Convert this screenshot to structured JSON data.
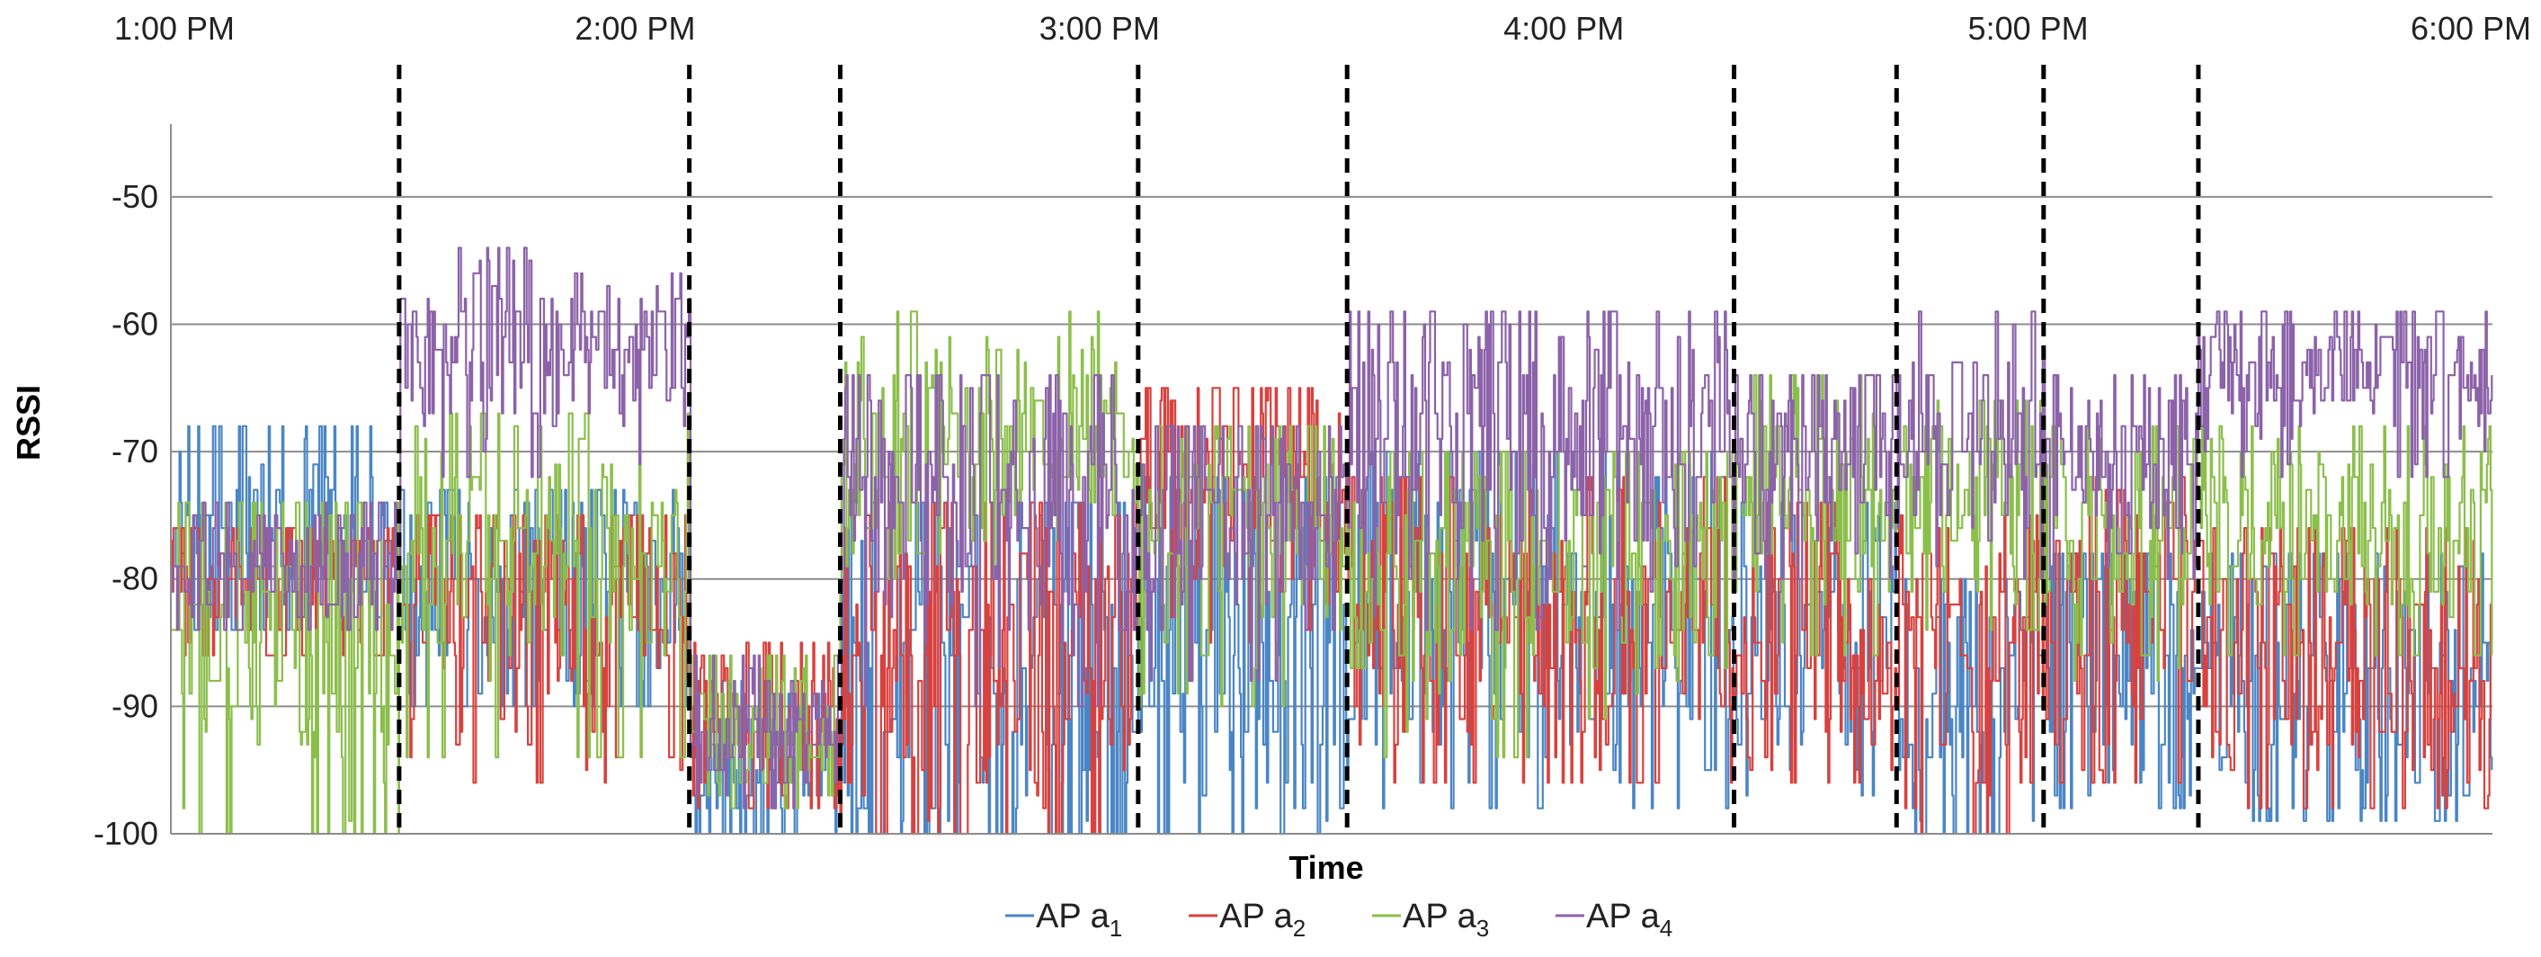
{
  "chart_data": {
    "type": "line",
    "title": "",
    "xlabel": "Time",
    "ylabel": "RSSI",
    "ylim": [
      -100,
      -45
    ],
    "yticks": [
      -50,
      -60,
      -70,
      -80,
      -90,
      -100
    ],
    "ytick_labels": [
      "-50",
      "-60",
      "-70",
      "-80",
      "-90",
      "-100"
    ],
    "xlim_minutes": [
      0,
      300
    ],
    "time_tick_labels": [
      "1:00 PM",
      "2:00 PM",
      "3:00 PM",
      "4:00 PM",
      "5:00 PM",
      "6:00 PM"
    ],
    "time_tick_minutes": [
      0,
      60,
      120,
      180,
      240,
      300
    ],
    "gridlines": "horizontal",
    "boundaries_minutes": [
      29.5,
      67,
      86.5,
      125,
      152,
      202,
      223,
      242,
      262
    ],
    "legend_position": "bottom-center",
    "series": [
      {
        "name": "AP a1",
        "label_main": "AP a",
        "label_sub": "1",
        "color": "#4a86c5",
        "segments": [
          {
            "from": 0,
            "to": 29.5,
            "mean": -77,
            "spread": 6,
            "min": -84,
            "max": -68
          },
          {
            "from": 29.5,
            "to": 67,
            "mean": -80,
            "spread": 6,
            "min": -90,
            "max": -73
          },
          {
            "from": 67,
            "to": 86.5,
            "mean": -95,
            "spread": 4,
            "min": -100,
            "max": -88
          },
          {
            "from": 86.5,
            "to": 125,
            "mean": -88,
            "spread": 10,
            "min": -100,
            "max": -74
          },
          {
            "from": 125,
            "to": 152,
            "mean": -84,
            "spread": 9,
            "min": -100,
            "max": -72
          },
          {
            "from": 152,
            "to": 202,
            "mean": -83,
            "spread": 8,
            "min": -98,
            "max": -70
          },
          {
            "from": 202,
            "to": 223,
            "mean": -85,
            "spread": 7,
            "min": -97,
            "max": -74
          },
          {
            "from": 223,
            "to": 242,
            "mean": -89,
            "spread": 6,
            "min": -100,
            "max": -80
          },
          {
            "from": 242,
            "to": 262,
            "mean": -87,
            "spread": 7,
            "min": -98,
            "max": -78
          },
          {
            "from": 262,
            "to": 300,
            "mean": -87,
            "spread": 7,
            "min": -99,
            "max": -78
          }
        ]
      },
      {
        "name": "AP a2",
        "label_main": "AP a",
        "label_sub": "2",
        "color": "#d9413e",
        "segments": [
          {
            "from": 0,
            "to": 29.5,
            "mean": -80,
            "spread": 4,
            "min": -86,
            "max": -76
          },
          {
            "from": 29.5,
            "to": 67,
            "mean": -81,
            "spread": 6,
            "min": -96,
            "max": -75
          },
          {
            "from": 67,
            "to": 86.5,
            "mean": -91,
            "spread": 4,
            "min": -98,
            "max": -85
          },
          {
            "from": 86.5,
            "to": 125,
            "mean": -87,
            "spread": 9,
            "min": -100,
            "max": -74
          },
          {
            "from": 125,
            "to": 152,
            "mean": -73,
            "spread": 5,
            "min": -85,
            "max": -65
          },
          {
            "from": 152,
            "to": 202,
            "mean": -84,
            "spread": 7,
            "min": -96,
            "max": -72
          },
          {
            "from": 202,
            "to": 223,
            "mean": -85,
            "spread": 7,
            "min": -96,
            "max": -74
          },
          {
            "from": 223,
            "to": 242,
            "mean": -86,
            "spread": 7,
            "min": -100,
            "max": -75
          },
          {
            "from": 242,
            "to": 262,
            "mean": -82,
            "spread": 8,
            "min": -96,
            "max": -72
          },
          {
            "from": 262,
            "to": 300,
            "mean": -86,
            "spread": 7,
            "min": -98,
            "max": -76
          }
        ]
      },
      {
        "name": "AP a3",
        "label_main": "AP a",
        "label_sub": "3",
        "color": "#8bbf4b",
        "segments": [
          {
            "from": 0,
            "to": 29.5,
            "mean": -85,
            "spread": 8,
            "min": -100,
            "max": -74
          },
          {
            "from": 29.5,
            "to": 67,
            "mean": -77,
            "spread": 5,
            "min": -94,
            "max": -67
          },
          {
            "from": 67,
            "to": 86.5,
            "mean": -91,
            "spread": 4,
            "min": -98,
            "max": -86
          },
          {
            "from": 86.5,
            "to": 125,
            "mean": -69,
            "spread": 5,
            "min": -80,
            "max": -59
          },
          {
            "from": 125,
            "to": 152,
            "mean": -77,
            "spread": 6,
            "min": -90,
            "max": -68
          },
          {
            "from": 152,
            "to": 202,
            "mean": -80,
            "spread": 6,
            "min": -94,
            "max": -70
          },
          {
            "from": 202,
            "to": 223,
            "mean": -74,
            "spread": 5,
            "min": -86,
            "max": -64
          },
          {
            "from": 223,
            "to": 242,
            "mean": -73,
            "spread": 5,
            "min": -84,
            "max": -66
          },
          {
            "from": 242,
            "to": 262,
            "mean": -76,
            "spread": 5,
            "min": -88,
            "max": -68
          },
          {
            "from": 262,
            "to": 300,
            "mean": -76,
            "spread": 4,
            "min": -86,
            "max": -68
          }
        ]
      },
      {
        "name": "AP a4",
        "label_main": "AP a",
        "label_sub": "4",
        "color": "#8c62aa",
        "segments": [
          {
            "from": 0,
            "to": 29.5,
            "mean": -79,
            "spread": 3,
            "min": -84,
            "max": -74
          },
          {
            "from": 29.5,
            "to": 67,
            "mean": -62,
            "spread": 4,
            "min": -72,
            "max": -54
          },
          {
            "from": 67,
            "to": 86.5,
            "mean": -92,
            "spread": 3,
            "min": -98,
            "max": -86
          },
          {
            "from": 86.5,
            "to": 125,
            "mean": -74,
            "spread": 6,
            "min": -90,
            "max": -64
          },
          {
            "from": 125,
            "to": 152,
            "mean": -75,
            "spread": 5,
            "min": -88,
            "max": -68
          },
          {
            "from": 152,
            "to": 202,
            "mean": -69,
            "spread": 6,
            "min": -84,
            "max": -59
          },
          {
            "from": 202,
            "to": 223,
            "mean": -70,
            "spread": 4,
            "min": -80,
            "max": -64
          },
          {
            "from": 223,
            "to": 242,
            "mean": -69,
            "spread": 5,
            "min": -80,
            "max": -59
          },
          {
            "from": 242,
            "to": 262,
            "mean": -71,
            "spread": 4,
            "min": -80,
            "max": -64
          },
          {
            "from": 262,
            "to": 300,
            "mean": -64,
            "spread": 3,
            "min": -72,
            "max": -59
          }
        ]
      }
    ]
  }
}
